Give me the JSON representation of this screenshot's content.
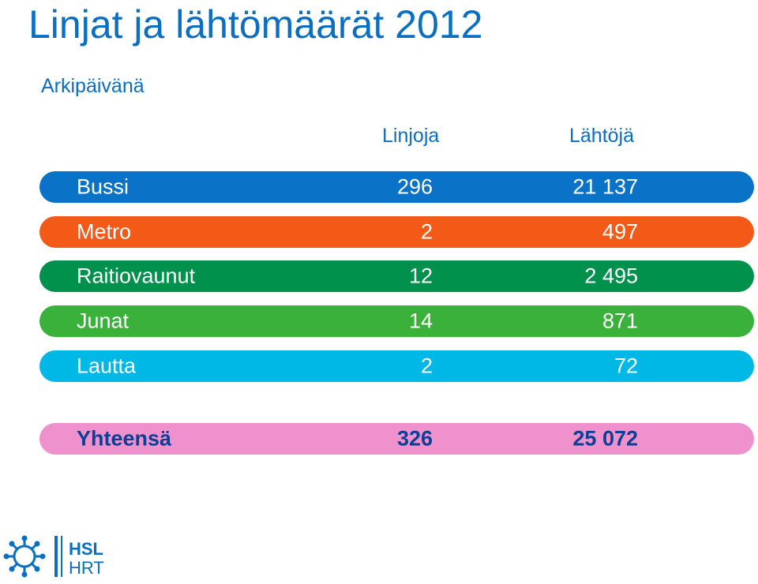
{
  "page": {
    "title": "Linjat ja lähtömäärät 2012",
    "subtitle": "Arkipäivänä"
  },
  "columns": {
    "lines": "Linjoja",
    "departures": "Lähtöjä"
  },
  "rows": [
    {
      "mode": "Bussi",
      "lines": "296",
      "departures": "21 137",
      "color": "#0a72c7"
    },
    {
      "mode": "Metro",
      "lines": "2",
      "departures": "497",
      "color": "#f35a17"
    },
    {
      "mode": "Raitiovaunut",
      "lines": "12",
      "departures": "2 495",
      "color": "#00924c"
    },
    {
      "mode": "Junat",
      "lines": "14",
      "departures": "871",
      "color": "#3ab13a"
    },
    {
      "mode": "Lautta",
      "lines": "2",
      "departures": "72",
      "color": "#00b8e6"
    }
  ],
  "total": {
    "mode": "Yhteensä",
    "lines": "326",
    "departures": "25 072",
    "color": "#ef91cd"
  },
  "logo": {
    "line1": "HSL",
    "line2": "HRT",
    "color": "#0a6fc2"
  }
}
